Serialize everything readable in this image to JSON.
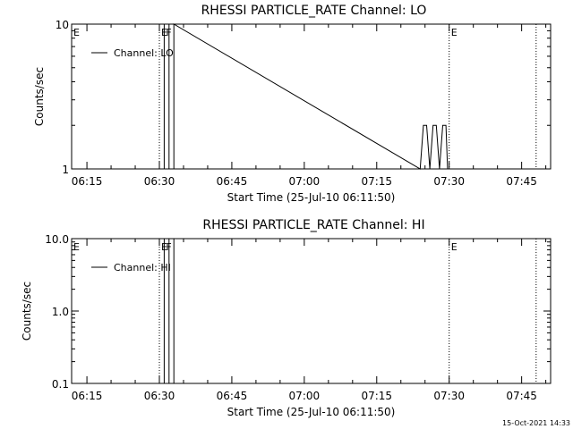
{
  "chart_data": [
    {
      "type": "line",
      "title": "RHESSI PARTICLE_RATE Channel: LO",
      "xlabel": "Start Time (25-Jul-10 06:11:50)",
      "ylabel": "Counts/sec",
      "y_scale": "log",
      "xlim": [
        "06:11:50",
        "07:51:00"
      ],
      "ylim": [
        1,
        10
      ],
      "x_ticks": [
        "06:15",
        "06:30",
        "06:45",
        "07:00",
        "07:15",
        "07:30",
        "07:45"
      ],
      "y_ticks": [
        "1",
        "10"
      ],
      "legend": {
        "position": "top-left",
        "entries": [
          "Channel: LO"
        ]
      },
      "flag_lines": [
        {
          "time": "06:30:00",
          "label": "E"
        },
        {
          "time": "07:30:00",
          "label": "E"
        },
        {
          "time": "07:48:00",
          "label": ""
        }
      ],
      "flag_labels": [
        {
          "time": "06:11:50",
          "label": "E"
        },
        {
          "time": "06:31:00",
          "label": "F"
        }
      ],
      "series": [
        {
          "name": "Channel: LO",
          "points": [
            [
              "06:31:00",
              1
            ],
            [
              "06:31:00",
              10
            ],
            [
              "06:32:00",
              10
            ],
            [
              "06:32:00",
              1
            ],
            [
              "06:33:00",
              1
            ],
            [
              "06:33:00",
              10
            ],
            [
              "07:24:00",
              1
            ],
            [
              "07:24:40",
              2
            ],
            [
              "07:25:20",
              2
            ],
            [
              "07:26:00",
              1
            ],
            [
              "07:26:40",
              2
            ],
            [
              "07:27:20",
              2
            ],
            [
              "07:28:00",
              1
            ],
            [
              "07:28:40",
              2
            ],
            [
              "07:29:20",
              2
            ],
            [
              "07:29:40",
              1
            ]
          ]
        }
      ]
    },
    {
      "type": "line",
      "title": "RHESSI PARTICLE_RATE Channel: HI",
      "xlabel": "Start Time (25-Jul-10 06:11:50)",
      "ylabel": "Counts/sec",
      "y_scale": "log",
      "xlim": [
        "06:11:50",
        "07:51:00"
      ],
      "ylim": [
        0.1,
        10
      ],
      "x_ticks": [
        "06:15",
        "06:30",
        "06:45",
        "07:00",
        "07:15",
        "07:30",
        "07:45"
      ],
      "y_ticks": [
        "0.1",
        "1.0",
        "10.0"
      ],
      "legend": {
        "position": "top-left",
        "entries": [
          "Channel: HI"
        ]
      },
      "flag_lines": [
        {
          "time": "06:30:00",
          "label": "E"
        },
        {
          "time": "07:30:00",
          "label": "E"
        },
        {
          "time": "07:48:00",
          "label": ""
        }
      ],
      "flag_labels": [
        {
          "time": "06:11:50",
          "label": "E"
        },
        {
          "time": "06:31:00",
          "label": "F"
        }
      ],
      "series": [
        {
          "name": "Channel: HI",
          "points": [
            [
              "06:31:00",
              0.1
            ],
            [
              "06:31:00",
              10
            ],
            [
              "06:32:00",
              10
            ],
            [
              "06:32:00",
              0.1
            ],
            [
              "06:33:00",
              0.1
            ],
            [
              "06:33:00",
              10
            ]
          ]
        }
      ]
    }
  ],
  "footer": {
    "timestamp": "15-Oct-2021 14:33"
  }
}
